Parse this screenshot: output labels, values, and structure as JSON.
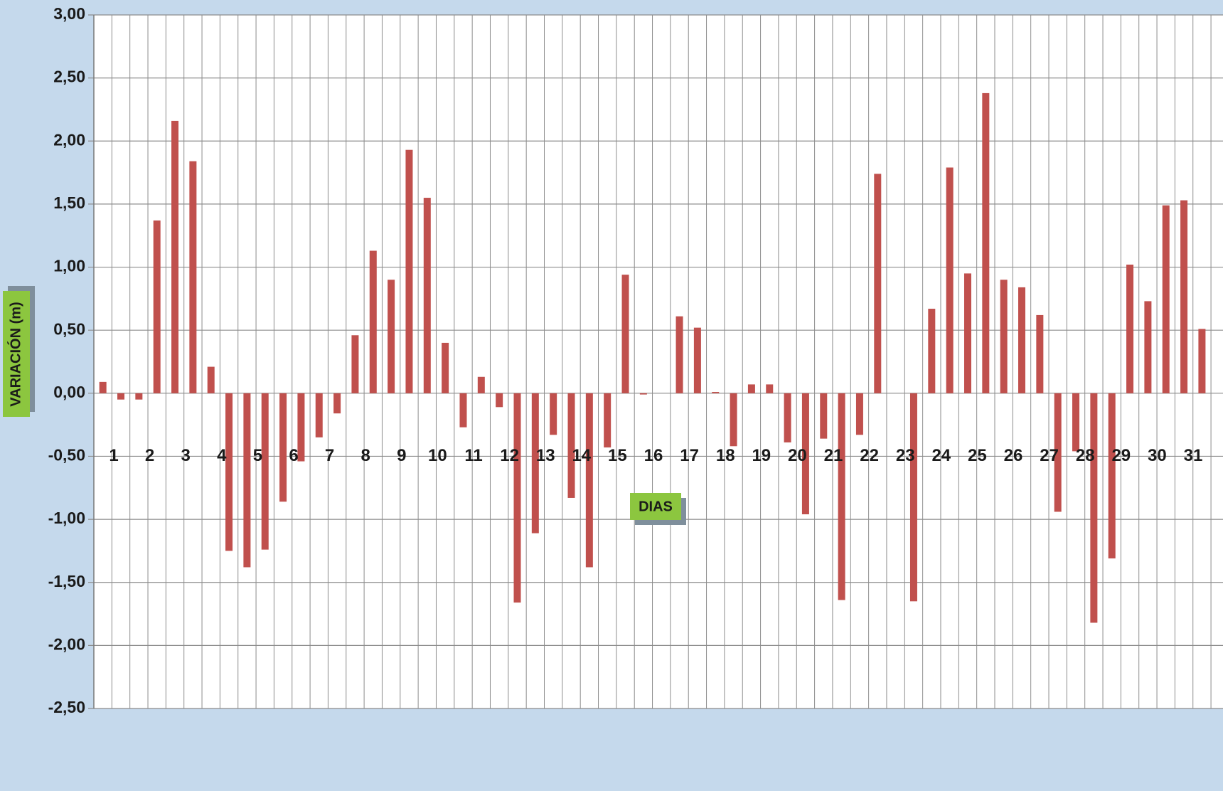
{
  "chart_data": {
    "type": "bar",
    "xlabel": "DIAS",
    "ylabel": "VARIACIÓN (m)",
    "ylim": [
      -2.5,
      3.0
    ],
    "y_ticks": [
      "3,00",
      "2,50",
      "2,00",
      "1,50",
      "1,00",
      "0,50",
      "0,00",
      "-0,50",
      "-1,00",
      "-1,50",
      "-2,00",
      "-2,50"
    ],
    "day_labels": [
      "1",
      "2",
      "3",
      "4",
      "5",
      "6",
      "7",
      "8",
      "9",
      "10",
      "11",
      "12",
      "13",
      "14",
      "15",
      "16",
      "17",
      "18",
      "19",
      "20",
      "21",
      "22",
      "23",
      "24",
      "25",
      "26",
      "27",
      "28",
      "29",
      "30",
      "31"
    ],
    "grid": true,
    "bar_color": "#c0504d",
    "values": [
      0.09,
      -0.05,
      -0.05,
      1.37,
      2.16,
      1.84,
      0.21,
      -1.25,
      -1.38,
      -1.24,
      -0.86,
      -0.54,
      -0.35,
      -0.16,
      0.46,
      1.13,
      0.9,
      1.93,
      1.55,
      0.4,
      -0.27,
      0.13,
      -0.11,
      -1.66,
      -1.11,
      -0.33,
      -0.83,
      -1.38,
      -0.43,
      0.94,
      -0.01,
      0.0,
      0.61,
      0.52,
      0.01,
      -0.42,
      0.07,
      0.07,
      -0.39,
      -0.96,
      -0.36,
      -1.64,
      -0.33,
      1.74,
      0.0,
      -1.65,
      0.67,
      1.79,
      0.95,
      2.38,
      0.9,
      0.84,
      0.62,
      -0.94,
      -0.46,
      -1.82,
      -1.31,
      1.02,
      0.73,
      1.49,
      1.53,
      0.51
    ]
  }
}
